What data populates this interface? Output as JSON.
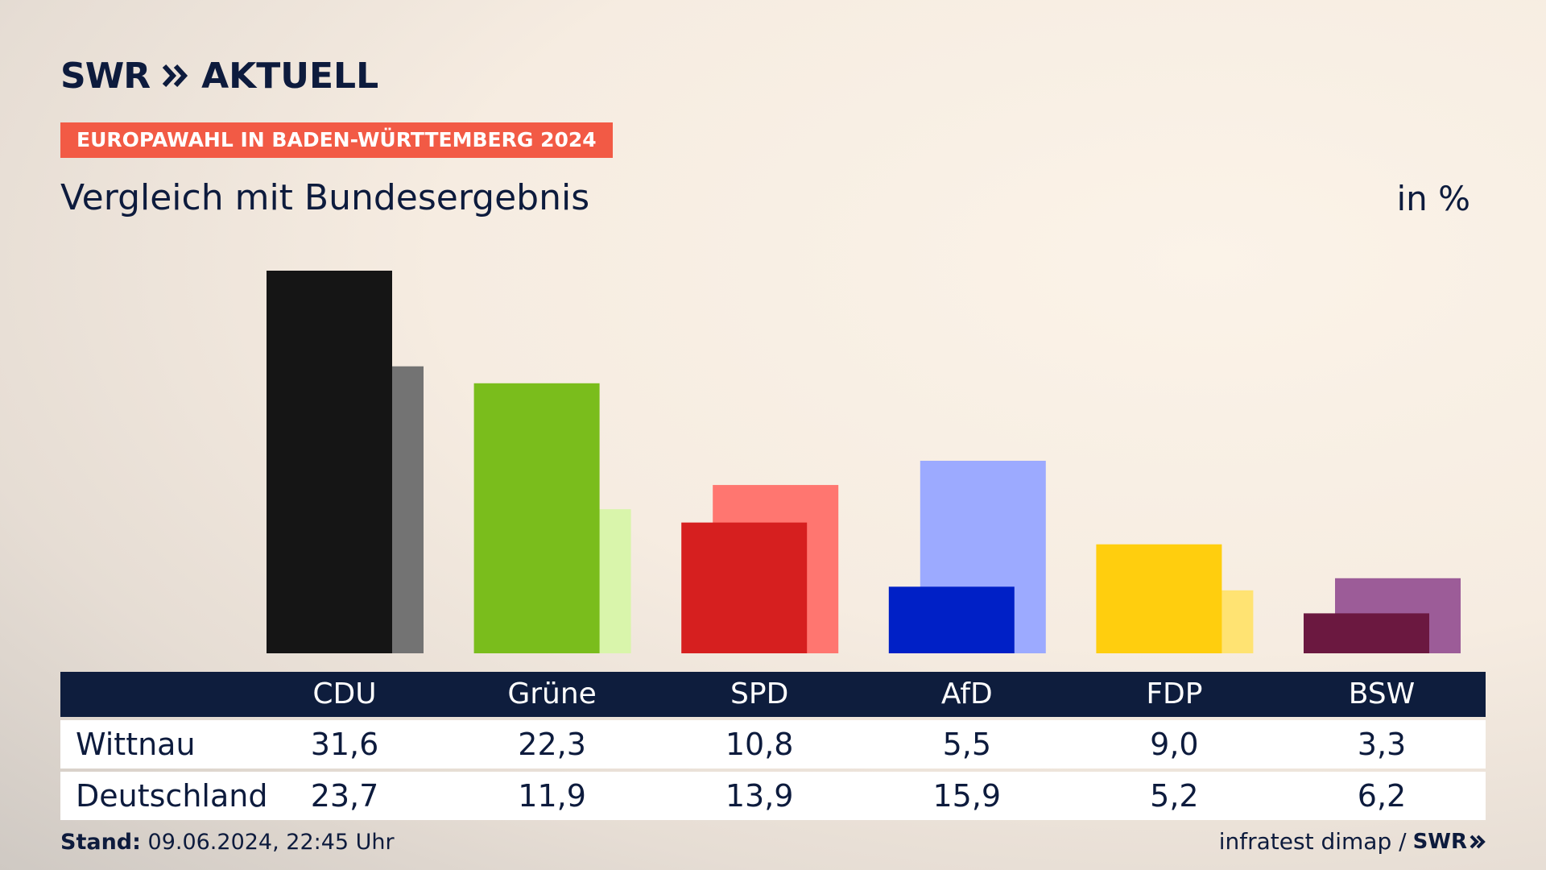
{
  "header": {
    "logo_text": "SWR",
    "brand_section": "AKTUELL",
    "badge": "EUROPAWAHL IN BADEN-WÜRTTEMBERG 2024",
    "title": "Vergleich mit Bundesergebnis",
    "unit": "in %"
  },
  "footer": {
    "stand_label": "Stand:",
    "stand_value": "09.06.2024, 22:45 Uhr",
    "source": "infratest dimap /",
    "source_logo": "SWR"
  },
  "colors": {
    "background": "#f6ece1",
    "text": "#0d1b3d",
    "badge": "#f25a45",
    "table_header": "#0e1d3d"
  },
  "chart_data": {
    "type": "bar",
    "categories": [
      "CDU",
      "Grüne",
      "SPD",
      "AfD",
      "FDP",
      "BSW"
    ],
    "ylim": [
      0,
      31.6
    ],
    "grid": false,
    "series": [
      {
        "name": "Wittnau",
        "values": [
          31.6,
          22.3,
          10.8,
          5.5,
          9.0,
          3.3
        ],
        "labels": [
          "31,6",
          "22,3",
          "10,8",
          "5,5",
          "9,0",
          "3,3"
        ],
        "colors": [
          "#151515",
          "#7abd1c",
          "#d61f1f",
          "#0020c6",
          "#ffce0e",
          "#6b1840"
        ]
      },
      {
        "name": "Deutschland",
        "values": [
          23.7,
          11.9,
          13.9,
          15.9,
          5.2,
          6.2
        ],
        "labels": [
          "23,7",
          "11,9",
          "13,9",
          "15,9",
          "5,2",
          "6,2"
        ],
        "colors": [
          "#737373",
          "#d9f5ab",
          "#ff7670",
          "#9caaff",
          "#ffe372",
          "#9c5c98"
        ]
      }
    ]
  }
}
